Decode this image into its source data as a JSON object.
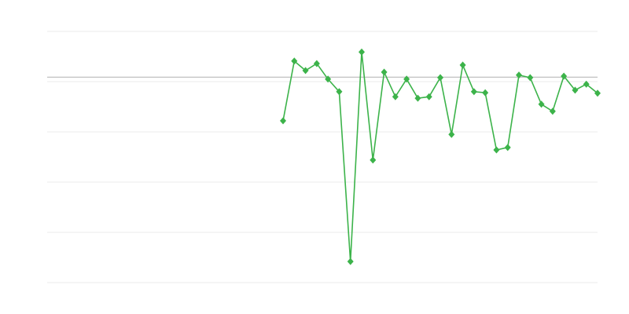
{
  "chart_data": {
    "type": "line",
    "title": "",
    "xlabel": "",
    "ylabel": "",
    "xlim": [
      0,
      49
    ],
    "ylim": [
      0,
      5
    ],
    "grid": true,
    "gridlines": [
      0,
      1,
      2,
      3,
      4,
      5
    ],
    "reference_line": 4.09,
    "colors": {
      "series": "#3cb34a",
      "grid": "#ebebeb",
      "reference": "#b0b0b0"
    },
    "marker": "diamond",
    "x_start": 21,
    "series": [
      {
        "values": [
          3.22,
          4.41,
          4.22,
          4.36,
          4.05,
          3.8,
          0.42,
          4.59,
          2.44,
          4.19,
          3.7,
          4.05,
          3.67,
          3.7,
          4.08,
          2.95,
          4.33,
          3.8,
          3.78,
          2.64,
          2.69,
          4.13,
          4.08,
          3.55,
          3.41,
          4.11,
          3.83,
          3.95,
          3.77
        ]
      }
    ]
  }
}
